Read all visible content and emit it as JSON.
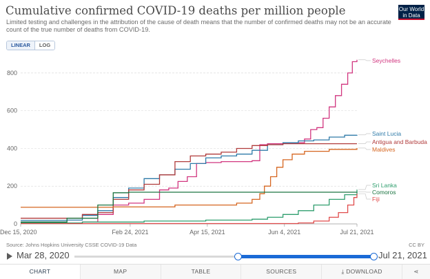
{
  "header": {
    "title": "Cumulative confirmed COVID-19 deaths per million people",
    "subtitle": "Limited testing and challenges in the attribution of the cause of death means that the number of confirmed deaths may not be an accurate count of the true number of deaths from COVID-19.",
    "logo_line1": "Our World",
    "logo_line2": "in Data"
  },
  "scale_toggle": {
    "linear": "LINEAR",
    "log": "LOG",
    "active": "linear"
  },
  "chart_data": {
    "type": "line",
    "x_ticks": [
      "Dec 15, 2020",
      "Feb 24, 2021",
      "Apr 15, 2021",
      "Jun 4, 2021",
      "Jul 21, 2021"
    ],
    "x_tick_days": [
      0,
      71,
      121,
      171,
      218
    ],
    "y_ticks": [
      0,
      200,
      400,
      600,
      800
    ],
    "ylim": [
      0,
      880
    ],
    "grid": "horizontal dashed",
    "legend": "right, line-end labels",
    "series": [
      {
        "name": "Seychelles",
        "color": "#d1357f",
        "points": [
          [
            0,
            5
          ],
          [
            40,
            10
          ],
          [
            50,
            50
          ],
          [
            60,
            100
          ],
          [
            70,
            110
          ],
          [
            80,
            130
          ],
          [
            90,
            180
          ],
          [
            96,
            190
          ],
          [
            102,
            225
          ],
          [
            108,
            250
          ],
          [
            114,
            320
          ],
          [
            120,
            325
          ],
          [
            130,
            330
          ],
          [
            150,
            335
          ],
          [
            155,
            420
          ],
          [
            160,
            425
          ],
          [
            170,
            430
          ],
          [
            180,
            430
          ],
          [
            184,
            450
          ],
          [
            188,
            500
          ],
          [
            192,
            510
          ],
          [
            196,
            560
          ],
          [
            200,
            620
          ],
          [
            204,
            680
          ],
          [
            208,
            740
          ],
          [
            212,
            800
          ],
          [
            215,
            860
          ],
          [
            218,
            870
          ]
        ]
      },
      {
        "name": "Saint Lucia",
        "color": "#2e7aa8",
        "points": [
          [
            0,
            18
          ],
          [
            30,
            20
          ],
          [
            40,
            45
          ],
          [
            50,
            70
          ],
          [
            60,
            140
          ],
          [
            70,
            190
          ],
          [
            80,
            240
          ],
          [
            90,
            260
          ],
          [
            100,
            290
          ],
          [
            110,
            320
          ],
          [
            120,
            350
          ],
          [
            130,
            360
          ],
          [
            140,
            370
          ],
          [
            150,
            390
          ],
          [
            160,
            420
          ],
          [
            170,
            430
          ],
          [
            180,
            440
          ],
          [
            190,
            445
          ],
          [
            200,
            460
          ],
          [
            210,
            470
          ],
          [
            218,
            472
          ]
        ]
      },
      {
        "name": "Antigua and Barbuda",
        "color": "#b03a3a",
        "points": [
          [
            0,
            30
          ],
          [
            40,
            50
          ],
          [
            50,
            60
          ],
          [
            60,
            130
          ],
          [
            70,
            180
          ],
          [
            80,
            210
          ],
          [
            90,
            260
          ],
          [
            100,
            330
          ],
          [
            110,
            360
          ],
          [
            120,
            370
          ],
          [
            130,
            380
          ],
          [
            140,
            400
          ],
          [
            150,
            415
          ],
          [
            160,
            420
          ],
          [
            170,
            425
          ],
          [
            218,
            425
          ]
        ]
      },
      {
        "name": "Maldives",
        "color": "#d6651f",
        "points": [
          [
            0,
            88
          ],
          [
            60,
            90
          ],
          [
            100,
            100
          ],
          [
            140,
            110
          ],
          [
            150,
            130
          ],
          [
            155,
            160
          ],
          [
            158,
            200
          ],
          [
            162,
            250
          ],
          [
            166,
            300
          ],
          [
            170,
            340
          ],
          [
            176,
            370
          ],
          [
            184,
            385
          ],
          [
            200,
            395
          ],
          [
            218,
            402
          ]
        ]
      },
      {
        "name": "Sri Lanka",
        "color": "#2f9e6e",
        "points": [
          [
            0,
            5
          ],
          [
            40,
            10
          ],
          [
            80,
            15
          ],
          [
            120,
            20
          ],
          [
            150,
            25
          ],
          [
            160,
            35
          ],
          [
            170,
            50
          ],
          [
            180,
            70
          ],
          [
            190,
            100
          ],
          [
            200,
            130
          ],
          [
            210,
            155
          ],
          [
            218,
            182
          ]
        ]
      },
      {
        "name": "Comoros",
        "color": "#1a7340",
        "points": [
          [
            0,
            10
          ],
          [
            30,
            30
          ],
          [
            50,
            100
          ],
          [
            60,
            165
          ],
          [
            70,
            168
          ],
          [
            218,
            170
          ]
        ]
      },
      {
        "name": "Fiji",
        "color": "#e04a4a",
        "points": [
          [
            0,
            2
          ],
          [
            170,
            2
          ],
          [
            180,
            5
          ],
          [
            190,
            15
          ],
          [
            200,
            35
          ],
          [
            206,
            60
          ],
          [
            212,
            100
          ],
          [
            216,
            140
          ],
          [
            218,
            160
          ]
        ]
      }
    ]
  },
  "footer": {
    "source": "Source: Johns Hopkins University CSSE COVID-19 Data",
    "license": "CC BY"
  },
  "timeline": {
    "start_label": "Mar 28, 2020",
    "end_label": "Jul 21, 2021",
    "selected_start": 0.545,
    "selected_end": 1.0
  },
  "tabs": [
    {
      "label": "CHART",
      "active": true
    },
    {
      "label": "MAP",
      "active": false
    },
    {
      "label": "TABLE",
      "active": false
    },
    {
      "label": "SOURCES",
      "active": false
    },
    {
      "label": "DOWNLOAD",
      "active": false
    }
  ]
}
